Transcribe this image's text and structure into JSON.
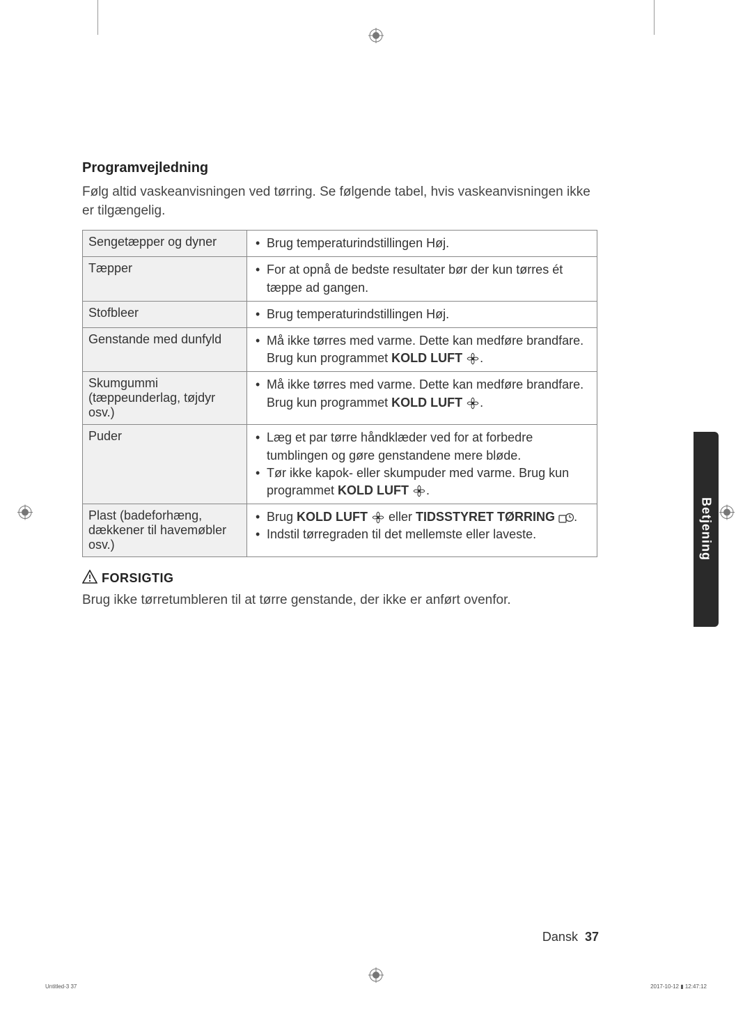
{
  "cropmark_color": "#888888",
  "heading": "Programvejledning",
  "intro": "Følg altid vaskeanvisningen ved tørring. Se følgende tabel, hvis vaskeanvisningen ikke er tilgængelig.",
  "table": {
    "rows": [
      {
        "label": "Sengetæpper og dyner",
        "items": [
          {
            "text": "Brug temperaturindstillingen Høj."
          }
        ]
      },
      {
        "label": "Tæpper",
        "items": [
          {
            "text": "For at opnå de bedste resultater bør der kun tørres ét tæppe ad gangen."
          }
        ]
      },
      {
        "label": "Stofbleer",
        "items": [
          {
            "text": "Brug temperaturindstillingen Høj."
          }
        ]
      },
      {
        "label": "Genstande med dunfyld",
        "items": [
          {
            "pre": "Må ikke tørres med varme. Dette kan medføre brandfare. Brug kun programmet ",
            "bold": "KOLD LUFT",
            "icon": "fan",
            "post": "."
          }
        ]
      },
      {
        "label": "Skumgummi (tæppeunderlag, tøjdyr osv.)",
        "items": [
          {
            "pre": "Må ikke tørres med varme. Dette kan medføre brandfare. Brug kun programmet ",
            "bold": "KOLD LUFT",
            "icon": "fan",
            "post": "."
          }
        ]
      },
      {
        "label": "Puder",
        "items": [
          {
            "text": "Læg et par tørre håndklæder ved for at forbedre tumblingen og gøre genstandene mere bløde."
          },
          {
            "pre": "Tør ikke kapok- eller skumpuder med varme. Brug kun programmet ",
            "bold": "KOLD LUFT",
            "icon": "fan",
            "post": "."
          }
        ]
      },
      {
        "label": "Plast (badeforhæng, dækkener til havemøbler osv.)",
        "items": [
          {
            "pre": "Brug ",
            "bold": "KOLD LUFT",
            "icon": "fan",
            "mid": " eller ",
            "bold2": "TIDSSTYRET TØRRING",
            "icon2": "clock",
            "post": "."
          },
          {
            "text": "Indstil tørregraden til det mellemste eller laveste."
          }
        ]
      }
    ]
  },
  "caution_label": "FORSIGTIG",
  "caution_text": "Brug ikke tørretumbleren til at tørre genstande, der ikke er anført ovenfor.",
  "side_tab": "Betjening",
  "footer_lang": "Dansk",
  "footer_page": "37",
  "micro_left": "Untitled-3   37",
  "micro_right": "2017-10-12   ▮ 12:47:12"
}
